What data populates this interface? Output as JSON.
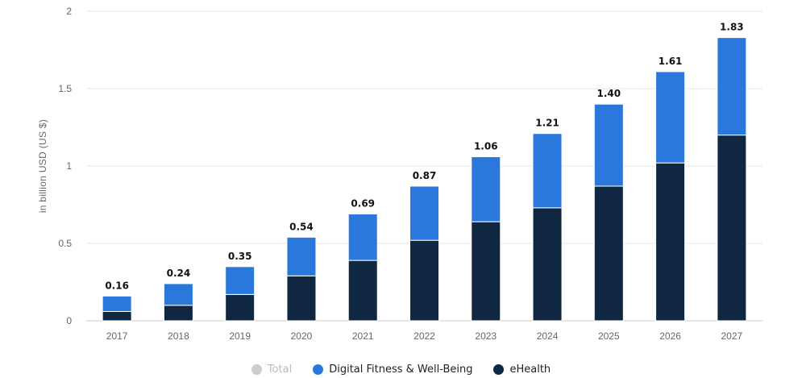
{
  "chart_data": {
    "type": "bar",
    "stacked": true,
    "categories": [
      "2017",
      "2018",
      "2019",
      "2020",
      "2021",
      "2022",
      "2023",
      "2024",
      "2025",
      "2026",
      "2027"
    ],
    "series": [
      {
        "name": "eHealth",
        "color": "#0f2740",
        "values": [
          0.06,
          0.1,
          0.17,
          0.29,
          0.39,
          0.52,
          0.64,
          0.73,
          0.87,
          1.02,
          1.2
        ]
      },
      {
        "name": "Digital Fitness & Well-Being",
        "color": "#2b78dc",
        "values": [
          0.1,
          0.14,
          0.18,
          0.25,
          0.3,
          0.35,
          0.42,
          0.48,
          0.53,
          0.59,
          0.63
        ]
      }
    ],
    "totals": [
      "0.16",
      "0.24",
      "0.35",
      "0.54",
      "0.69",
      "0.87",
      "1.06",
      "1.21",
      "1.40",
      "1.61",
      "1.83"
    ],
    "ylabel": "in billion USD (US $)",
    "ylim": [
      0,
      2
    ],
    "yticks": [
      0,
      0.5,
      1,
      1.5,
      2
    ],
    "ytick_labels": [
      "0",
      "0.5",
      "1",
      "1.5",
      "2"
    ],
    "grid": true,
    "legend_position": "bottom"
  },
  "legend": {
    "items": [
      {
        "label": "Total",
        "color": "#cccccc",
        "disabled": true
      },
      {
        "label": "Digital Fitness & Well-Being",
        "color": "#2b78dc",
        "disabled": false
      },
      {
        "label": "eHealth",
        "color": "#0f2740",
        "disabled": false
      }
    ]
  }
}
